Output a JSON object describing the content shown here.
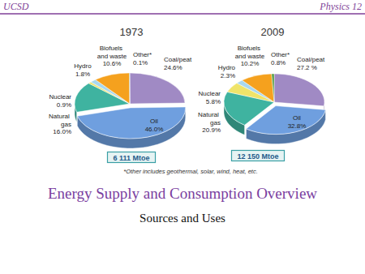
{
  "header": {
    "left": "UCSD",
    "right": "Physics 12"
  },
  "chart_data": [
    {
      "type": "pie",
      "title": "1973",
      "categories": [
        "Coal/peat",
        "Oil",
        "Natural gas",
        "Nuclear",
        "Hydro",
        "Biofuels and waste",
        "Other*"
      ],
      "values": [
        24.6,
        46.0,
        16.0,
        0.9,
        1.8,
        10.6,
        0.1
      ],
      "value_labels": [
        "24.6%",
        "46.0%",
        "16.0%",
        "0.9%",
        "1.8%",
        "10.6%",
        "0.1%"
      ],
      "colors": [
        "#a08ac4",
        "#6f9fdf",
        "#3fb3a0",
        "#efe46a",
        "#a8d8ef",
        "#f5a11e",
        "#4e9a3c"
      ],
      "data_labels": true,
      "annotations": [
        "6 111 Mtoe"
      ]
    },
    {
      "type": "pie",
      "title": "2009",
      "categories": [
        "Coal/peat",
        "Oil",
        "Natural gas",
        "Nuclear",
        "Hydro",
        "Biofuels and waste",
        "Other*"
      ],
      "values": [
        27.2,
        32.8,
        20.9,
        5.8,
        2.3,
        10.2,
        0.8
      ],
      "value_labels": [
        "27.2 %",
        "32.8%",
        "20.9%",
        "5.8%",
        "2.3%",
        "10.2%",
        "0.8%"
      ],
      "colors": [
        "#a08ac4",
        "#6f9fdf",
        "#3fb3a0",
        "#efe46a",
        "#a8d8ef",
        "#f5a11e",
        "#4e9a3c"
      ],
      "data_labels": true,
      "annotations": [
        "12 150 Mtoe"
      ]
    }
  ],
  "footnote": "*Other includes geothermal, solar, wind, heat, etc.",
  "slide": {
    "title": "Energy Supply and Consumption Overview",
    "subtitle": "Sources and Uses"
  }
}
